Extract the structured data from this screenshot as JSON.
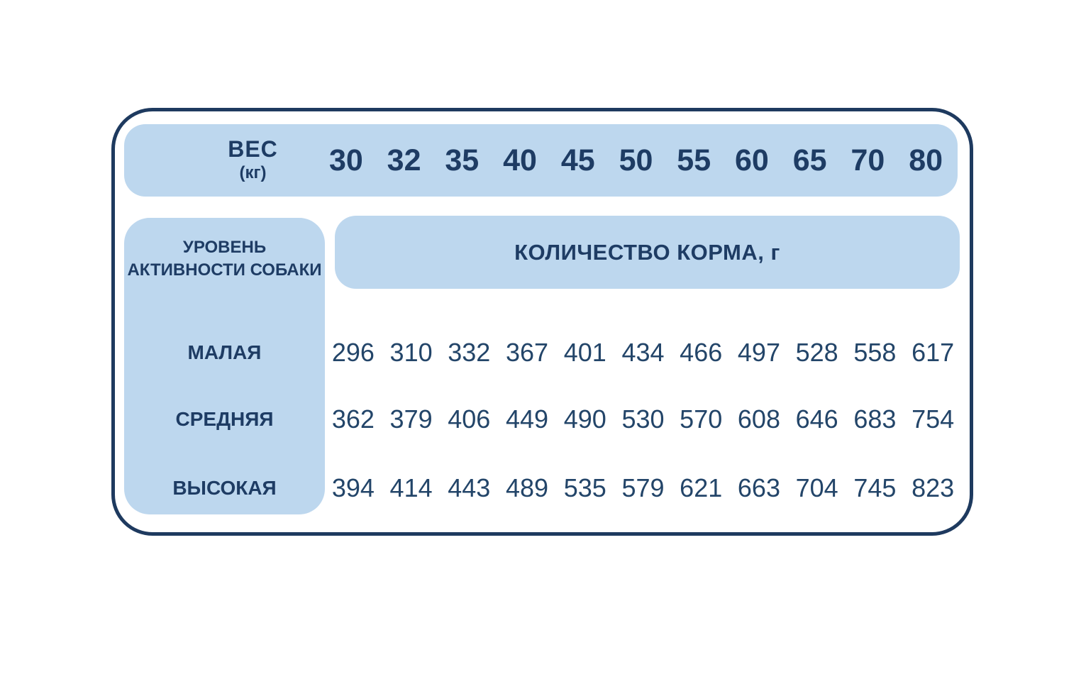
{
  "colors": {
    "card_border": "#1E3A5F",
    "block_fill": "#BDD7EE",
    "text_navy": "#1E3C64",
    "background": "#FFFFFF"
  },
  "header": {
    "weight_label": "ВЕС",
    "weight_unit": "(кг)"
  },
  "activity_header": {
    "line1": "УРОВЕНЬ",
    "line2": "АКТИВНОСТИ СОБАКИ"
  },
  "food_header": "КОЛИЧЕСТВО КОРМА, г",
  "chart_data": {
    "type": "table",
    "title": "КОЛИЧЕСТВО КОРМА, г",
    "column_header": "ВЕС (кг)",
    "row_header": "УРОВЕНЬ АКТИВНОСТИ СОБАКИ",
    "columns": [
      30,
      32,
      35,
      40,
      45,
      50,
      55,
      60,
      65,
      70,
      80
    ],
    "rows": [
      {
        "label": "МАЛАЯ",
        "values": [
          296,
          310,
          332,
          367,
          401,
          434,
          466,
          497,
          528,
          558,
          617
        ]
      },
      {
        "label": "СРЕДНЯЯ",
        "values": [
          362,
          379,
          406,
          449,
          490,
          530,
          570,
          608,
          646,
          683,
          754
        ]
      },
      {
        "label": "ВЫСОКАЯ",
        "values": [
          394,
          414,
          443,
          489,
          535,
          579,
          621,
          663,
          704,
          745,
          823
        ]
      }
    ]
  }
}
